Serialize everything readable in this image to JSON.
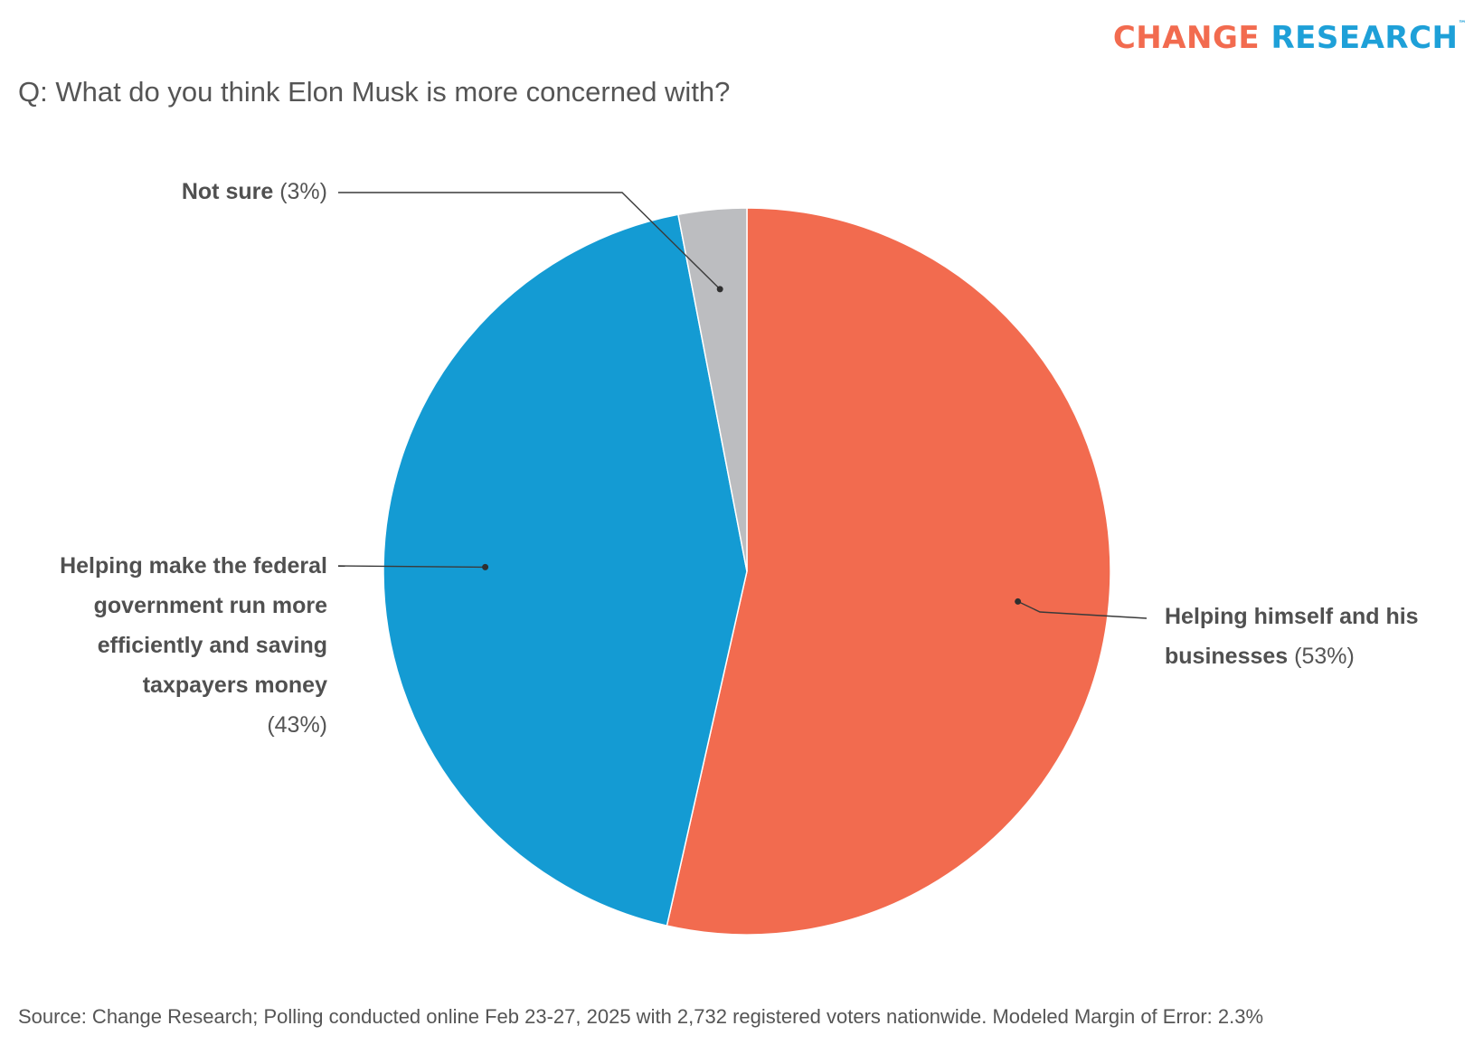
{
  "logo": {
    "word1": "CHANGE",
    "word2": "RESEARCH",
    "tm": "™"
  },
  "question": "Q: What do you think Elon Musk is more concerned with?",
  "source": "Source: Change Research; Polling conducted online Feb 23-27, 2025 with 2,732 registered voters nationwide. Modeled Margin of Error: 2.3%",
  "colors": {
    "self": "#f26b4f",
    "gov": "#149bd3",
    "notsure": "#bcbdc0",
    "text": "#555555"
  },
  "chart_data": {
    "type": "pie",
    "title": "Q: What do you think Elon Musk is more concerned with?",
    "slices": [
      {
        "label": "Helping himself and his businesses",
        "value": 53,
        "pct_text": "(53%)",
        "color": "#f26b4f"
      },
      {
        "label": "Helping make the federal government run more efficiently and saving taxpayers money",
        "value": 43,
        "pct_text": "(43%)",
        "color": "#149bd3"
      },
      {
        "label": "Not sure",
        "value": 3,
        "pct_text": "(3%)",
        "color": "#bcbdc0"
      }
    ]
  }
}
